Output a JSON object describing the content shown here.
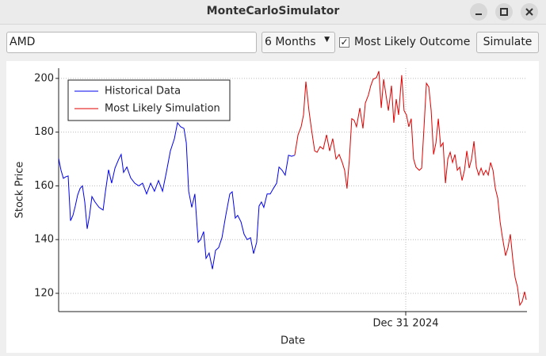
{
  "window": {
    "title": "MonteCarloSimulator"
  },
  "toolbar": {
    "ticker": "AMD",
    "period": "6 Months",
    "checkbox_label": "Most Likely Outcome",
    "checked": true,
    "button": "Simulate"
  },
  "chart_data": {
    "type": "line",
    "xlabel": "Date",
    "ylabel": "Stock Price",
    "grid": true,
    "legend": "upper left",
    "xlim": [
      0,
      197
    ],
    "xticks": [
      {
        "value": 146,
        "label": "Dec 31 2024"
      }
    ],
    "ylim": [
      113.2,
      203.8
    ],
    "yticks": [
      120,
      140,
      160,
      180,
      200
    ],
    "series": [
      {
        "name": "Historical Data",
        "color": "#0000ee",
        "x": [
          0,
          1,
          2,
          3,
          4,
          5,
          6,
          7,
          8,
          9,
          10,
          11,
          12,
          13,
          14,
          15.3,
          17,
          18.7,
          19.7,
          21,
          22.3,
          23.7,
          25.3,
          26.3,
          27.3,
          28.7,
          30.3,
          32,
          33.7,
          35.3,
          37,
          38.7,
          40.3,
          42,
          43.7,
          45.3,
          47,
          48.7,
          50,
          51.3,
          52.7,
          53.7,
          54.7,
          56,
          57.3,
          58.7,
          59.7,
          61,
          62,
          63.3,
          64.7,
          66,
          67.3,
          68.7,
          70.3,
          72,
          73,
          74.3,
          75.3,
          76.7,
          78,
          79.3,
          80.7,
          82,
          83.3,
          84.3,
          85.3,
          86.3,
          87.7,
          89,
          90.3,
          91.7,
          92.7,
          94,
          95.3,
          96.7,
          98,
          99.3
        ],
        "values": [
          170.2,
          165.8,
          162.8,
          163.4,
          163.7,
          147,
          149,
          152.5,
          156.6,
          159,
          160,
          153.9,
          144,
          149,
          156,
          154,
          152,
          151,
          158,
          166,
          161,
          166.6,
          170,
          171.7,
          165,
          167,
          163,
          161,
          160,
          161,
          157,
          161,
          158,
          162,
          158,
          165,
          173,
          177.6,
          183.5,
          182,
          181.4,
          176,
          158,
          152,
          157,
          139,
          140,
          143,
          133,
          135,
          129,
          136,
          137,
          140.7,
          149,
          157,
          157.8,
          148,
          149,
          146.6,
          142,
          140,
          140.7,
          134.8,
          139,
          152.5,
          154,
          152,
          157,
          157,
          159,
          161,
          167,
          165.8,
          164,
          171.4,
          171,
          171.4
        ]
      },
      {
        "name": "Most Likely Simulation",
        "color": "#e00000",
        "x": [
          99.3,
          100.7,
          102,
          103,
          104,
          105.3,
          106.3,
          107.7,
          108.7,
          110,
          111.3,
          112.7,
          114,
          115.3,
          116.7,
          118,
          119.3,
          120.3,
          121.3,
          122.3,
          123.3,
          124.3,
          125.3,
          126.7,
          128,
          129,
          130.3,
          131.3,
          132.3,
          133.7,
          134.7,
          135.7,
          136.7,
          137.7,
          138.7,
          140,
          141,
          142,
          143,
          144.3,
          145.3,
          146.3,
          147.3,
          148.3,
          149.3,
          150.3,
          151.7,
          152.7,
          153.7,
          154.7,
          155.7,
          156.7,
          157.7,
          158.7,
          159.7,
          160.7,
          161.7,
          162.7,
          163.7,
          164.7,
          165.7,
          166.7,
          167.7,
          168.7,
          169.7,
          170.7,
          171.7,
          172.7,
          173.7,
          174.7,
          175.7,
          176.7,
          177.7,
          178.7,
          179.7,
          180.7,
          181.7,
          182.7,
          183.7,
          184.7,
          185.7,
          186.7,
          188,
          189,
          190,
          191,
          192,
          193,
          194,
          195,
          196,
          196.7
        ],
        "values": [
          171.4,
          179,
          182,
          186.4,
          198.8,
          188,
          181.4,
          173,
          172.5,
          174.6,
          173.7,
          179,
          173,
          177.6,
          170,
          171.7,
          168.7,
          165.8,
          159,
          170,
          185,
          184.4,
          182,
          189,
          181.4,
          190.8,
          193.8,
          197.3,
          199.7,
          200.3,
          202.7,
          189,
          199.7,
          193.8,
          188,
          197.3,
          183.5,
          192.3,
          186.4,
          201.2,
          188,
          186.4,
          182,
          185,
          170,
          167,
          165.8,
          166.6,
          182,
          198.2,
          196.8,
          188,
          171.7,
          176,
          185,
          174.6,
          176,
          161,
          170,
          172.5,
          168.7,
          171.7,
          165.8,
          167,
          162,
          165.8,
          173,
          166.6,
          170,
          176.6,
          167,
          164,
          166.6,
          164,
          165.8,
          164,
          168.7,
          165.8,
          159,
          155.4,
          146.6,
          140.7,
          134,
          137,
          142,
          133,
          125.9,
          122.4,
          115.6,
          117,
          120.6,
          117.6
        ]
      }
    ]
  }
}
